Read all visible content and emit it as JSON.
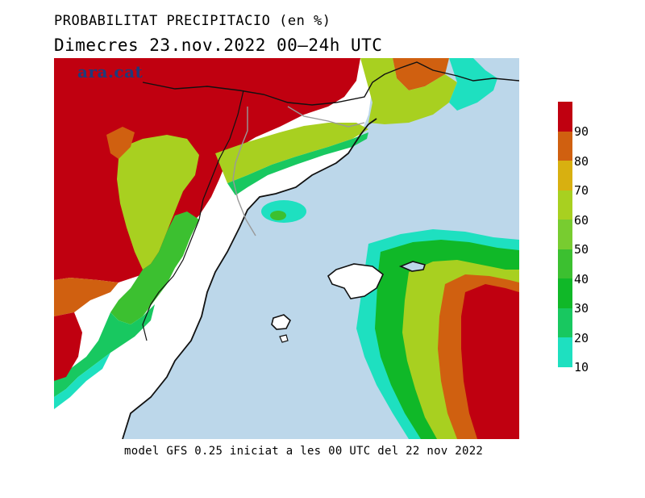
{
  "header": {
    "title": "PROBABILITAT PRECIPITACIO (en %)",
    "subtitle": "Dimecres  23.nov.2022 00–24h UTC"
  },
  "watermark": {
    "text": "ara.cat",
    "color": "#1f3a7a"
  },
  "footer": {
    "text": "model GFS 0.25 iniciat a les 00 UTC del 22 nov 2022"
  },
  "legend": {
    "bins": [
      {
        "min": 10,
        "max": 20,
        "color": "#1ee0c0",
        "label": "10"
      },
      {
        "min": 20,
        "max": 30,
        "color": "#18c860",
        "label": "20"
      },
      {
        "min": 30,
        "max": 40,
        "color": "#10b828",
        "label": "30"
      },
      {
        "min": 40,
        "max": 50,
        "color": "#3cc030",
        "label": "40"
      },
      {
        "min": 50,
        "max": 60,
        "color": "#78cc30",
        "label": "50"
      },
      {
        "min": 60,
        "max": 70,
        "color": "#a8d020",
        "label": "60"
      },
      {
        "min": 70,
        "max": 80,
        "color": "#d8b010",
        "label": "70"
      },
      {
        "min": 80,
        "max": 90,
        "color": "#d06010",
        "label": "80"
      },
      {
        "min": 90,
        "max": 100,
        "color": "#c00010",
        "label": "90"
      }
    ]
  },
  "map": {
    "colors": {
      "sea": "#bcd7ea",
      "land_no_precip": "#ffffff",
      "border": "#111111",
      "state_border": "#999999"
    }
  }
}
